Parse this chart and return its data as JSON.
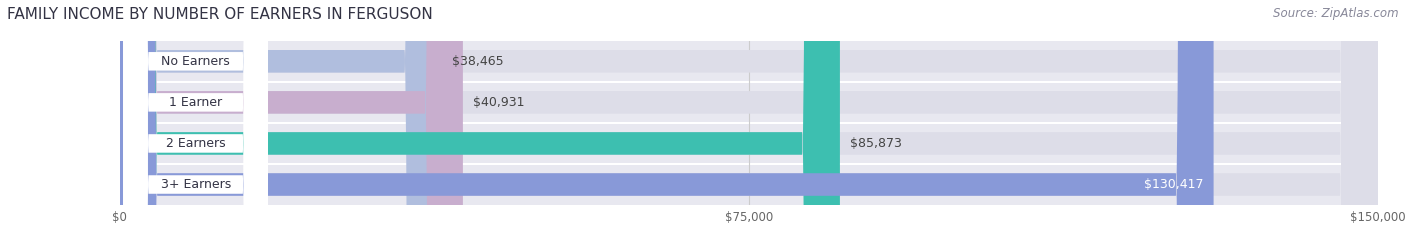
{
  "title": "FAMILY INCOME BY NUMBER OF EARNERS IN FERGUSON",
  "source": "Source: ZipAtlas.com",
  "categories": [
    "No Earners",
    "1 Earner",
    "2 Earners",
    "3+ Earners"
  ],
  "values": [
    38465,
    40931,
    85873,
    130417
  ],
  "bar_colors": [
    "#b0bede",
    "#c8aece",
    "#3dbfb0",
    "#8899d8"
  ],
  "bar_labels": [
    "$38,465",
    "$40,931",
    "$85,873",
    "$130,417"
  ],
  "label_colors": [
    "#444444",
    "#444444",
    "#444444",
    "#ffffff"
  ],
  "xlim": [
    0,
    150000
  ],
  "xtick_values": [
    0,
    75000,
    150000
  ],
  "xtick_labels": [
    "$0",
    "$75,000",
    "$150,000"
  ],
  "background_color": "#f2f2f7",
  "bar_row_bg": "#e8e8f0",
  "bar_bg_color": "#dddde8",
  "title_fontsize": 11,
  "source_fontsize": 8.5,
  "label_fontsize": 9,
  "category_fontsize": 9,
  "title_color": "#333344",
  "source_color": "#888899"
}
